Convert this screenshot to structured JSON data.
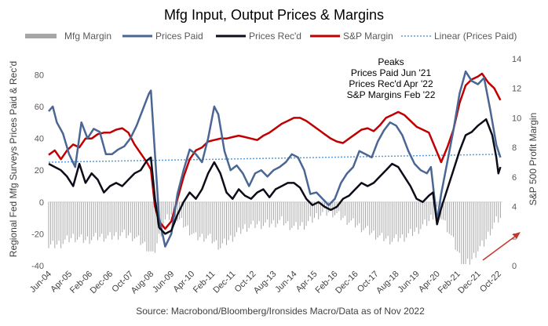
{
  "chart_data": {
    "type": "line",
    "title": "Mfg Input, Output Prices & Margins",
    "source": "Source: Macrobond/Bloomberg/Ironsides Macro/Data as of Nov 2022",
    "ylabel_left": "Regional Fed Mfg Surveys Prices Paid & Rec'd",
    "ylabel_right": "S&P 500 Profit Margin",
    "ylim_left": [
      -40,
      90
    ],
    "ylim_right": [
      0,
      14
    ],
    "yticks_left": [
      "-40",
      "-20",
      "0",
      "20",
      "40",
      "60",
      "80"
    ],
    "yticks_right": [
      "0",
      "2",
      "4",
      "6",
      "8",
      "10",
      "12",
      "14"
    ],
    "xticks": [
      "Jun-04",
      "Apr-05",
      "Feb-06",
      "Dec-06",
      "Oct-07",
      "Aug-08",
      "Jun-09",
      "Apr-10",
      "Feb-11",
      "Dec-11",
      "Oct-12",
      "Aug-13",
      "Jun-14",
      "Apr-15",
      "Feb-16",
      "Dec-16",
      "Oct-17",
      "Aug-18",
      "Jun-19",
      "Apr-20",
      "Feb-21",
      "Dec-21",
      "Oct-22"
    ],
    "x_start": "Jun-04",
    "x_end": "Dec-22",
    "legend": [
      "Mfg Margin",
      "Prices Paid",
      "Prices Rec'd",
      "S&P Margin",
      "Linear (Prices Paid)"
    ],
    "legend_position": "top",
    "annotation": [
      "Peaks",
      "Prices Paid Jun '21",
      "Prices Rec'd Apr '22",
      "S&P Margins Feb '22"
    ],
    "grid": false,
    "colors": {
      "mfg_margin": "#a6a6a6",
      "prices_paid": "#4a6694",
      "prices_recd": "#0d0d1a",
      "sp_margin": "#c00000",
      "trend": "#5b9bd5",
      "arrow": "#c0392b"
    },
    "series": [
      {
        "name": "Prices Paid",
        "axis": "left",
        "points": [
          [
            "2004-06",
            57
          ],
          [
            "2004-08",
            60
          ],
          [
            "2004-10",
            50
          ],
          [
            "2005-01",
            43
          ],
          [
            "2005-04",
            30
          ],
          [
            "2005-07",
            22
          ],
          [
            "2005-10",
            50
          ],
          [
            "2006-01",
            40
          ],
          [
            "2006-04",
            46
          ],
          [
            "2006-07",
            44
          ],
          [
            "2006-10",
            30
          ],
          [
            "2007-01",
            30
          ],
          [
            "2007-04",
            33
          ],
          [
            "2007-07",
            35
          ],
          [
            "2007-10",
            40
          ],
          [
            "2008-01",
            48
          ],
          [
            "2008-04",
            58
          ],
          [
            "2008-07",
            68
          ],
          [
            "2008-08",
            70
          ],
          [
            "2008-10",
            30
          ],
          [
            "2008-12",
            -10
          ],
          [
            "2009-03",
            -28
          ],
          [
            "2009-06",
            -20
          ],
          [
            "2009-09",
            5
          ],
          [
            "2009-12",
            20
          ],
          [
            "2010-03",
            33
          ],
          [
            "2010-06",
            30
          ],
          [
            "2010-09",
            25
          ],
          [
            "2010-12",
            40
          ],
          [
            "2011-03",
            60
          ],
          [
            "2011-05",
            55
          ],
          [
            "2011-08",
            32
          ],
          [
            "2011-11",
            20
          ],
          [
            "2012-02",
            23
          ],
          [
            "2012-05",
            18
          ],
          [
            "2012-08",
            10
          ],
          [
            "2012-11",
            18
          ],
          [
            "2013-02",
            20
          ],
          [
            "2013-05",
            16
          ],
          [
            "2013-08",
            20
          ],
          [
            "2013-11",
            22
          ],
          [
            "2014-02",
            25
          ],
          [
            "2014-05",
            30
          ],
          [
            "2014-08",
            28
          ],
          [
            "2014-11",
            20
          ],
          [
            "2015-02",
            5
          ],
          [
            "2015-05",
            6
          ],
          [
            "2015-08",
            2
          ],
          [
            "2015-11",
            -2
          ],
          [
            "2016-02",
            2
          ],
          [
            "2016-05",
            12
          ],
          [
            "2016-08",
            18
          ],
          [
            "2016-11",
            22
          ],
          [
            "2017-02",
            32
          ],
          [
            "2017-05",
            30
          ],
          [
            "2017-08",
            28
          ],
          [
            "2017-11",
            38
          ],
          [
            "2018-02",
            45
          ],
          [
            "2018-05",
            50
          ],
          [
            "2018-08",
            48
          ],
          [
            "2018-11",
            42
          ],
          [
            "2019-02",
            32
          ],
          [
            "2019-05",
            24
          ],
          [
            "2019-08",
            20
          ],
          [
            "2019-11",
            18
          ],
          [
            "2020-01",
            22
          ],
          [
            "2020-04",
            -12
          ],
          [
            "2020-06",
            5
          ],
          [
            "2020-09",
            25
          ],
          [
            "2020-12",
            45
          ],
          [
            "2021-03",
            68
          ],
          [
            "2021-06",
            82
          ],
          [
            "2021-09",
            76
          ],
          [
            "2021-12",
            74
          ],
          [
            "2022-03",
            78
          ],
          [
            "2022-06",
            58
          ],
          [
            "2022-09",
            36
          ],
          [
            "2022-11",
            28
          ]
        ]
      },
      {
        "name": "Prices Rec'd",
        "axis": "left",
        "points": [
          [
            "2004-06",
            24
          ],
          [
            "2004-09",
            22
          ],
          [
            "2004-12",
            20
          ],
          [
            "2005-03",
            16
          ],
          [
            "2005-06",
            10
          ],
          [
            "2005-09",
            24
          ],
          [
            "2005-12",
            12
          ],
          [
            "2006-03",
            18
          ],
          [
            "2006-06",
            14
          ],
          [
            "2006-09",
            6
          ],
          [
            "2006-12",
            10
          ],
          [
            "2007-03",
            12
          ],
          [
            "2007-06",
            10
          ],
          [
            "2007-09",
            14
          ],
          [
            "2007-12",
            18
          ],
          [
            "2008-03",
            20
          ],
          [
            "2008-06",
            26
          ],
          [
            "2008-08",
            28
          ],
          [
            "2008-10",
            2
          ],
          [
            "2008-12",
            -16
          ],
          [
            "2009-03",
            -20
          ],
          [
            "2009-06",
            -18
          ],
          [
            "2009-09",
            -8
          ],
          [
            "2009-12",
            0
          ],
          [
            "2010-03",
            6
          ],
          [
            "2010-06",
            2
          ],
          [
            "2010-09",
            8
          ],
          [
            "2010-12",
            18
          ],
          [
            "2011-03",
            25
          ],
          [
            "2011-06",
            18
          ],
          [
            "2011-09",
            6
          ],
          [
            "2011-12",
            2
          ],
          [
            "2012-03",
            8
          ],
          [
            "2012-06",
            4
          ],
          [
            "2012-09",
            2
          ],
          [
            "2012-12",
            6
          ],
          [
            "2013-03",
            8
          ],
          [
            "2013-06",
            3
          ],
          [
            "2013-09",
            8
          ],
          [
            "2013-12",
            10
          ],
          [
            "2014-03",
            12
          ],
          [
            "2014-06",
            12
          ],
          [
            "2014-09",
            9
          ],
          [
            "2014-12",
            2
          ],
          [
            "2015-03",
            -2
          ],
          [
            "2015-06",
            0
          ],
          [
            "2015-09",
            -3
          ],
          [
            "2015-12",
            -5
          ],
          [
            "2016-03",
            -3
          ],
          [
            "2016-06",
            2
          ],
          [
            "2016-09",
            4
          ],
          [
            "2016-12",
            8
          ],
          [
            "2017-03",
            12
          ],
          [
            "2017-06",
            10
          ],
          [
            "2017-09",
            12
          ],
          [
            "2017-12",
            16
          ],
          [
            "2018-03",
            20
          ],
          [
            "2018-06",
            24
          ],
          [
            "2018-09",
            22
          ],
          [
            "2018-12",
            16
          ],
          [
            "2019-03",
            10
          ],
          [
            "2019-06",
            2
          ],
          [
            "2019-09",
            0
          ],
          [
            "2019-12",
            4
          ],
          [
            "2020-02",
            6
          ],
          [
            "2020-04",
            -14
          ],
          [
            "2020-06",
            -4
          ],
          [
            "2020-09",
            8
          ],
          [
            "2020-12",
            20
          ],
          [
            "2021-03",
            32
          ],
          [
            "2021-06",
            42
          ],
          [
            "2021-09",
            44
          ],
          [
            "2021-12",
            48
          ],
          [
            "2022-04",
            52
          ],
          [
            "2022-07",
            42
          ],
          [
            "2022-09",
            28
          ],
          [
            "2022-10",
            18
          ],
          [
            "2022-11",
            22
          ]
        ]
      },
      {
        "name": "S&P Margin",
        "axis": "right",
        "points": [
          [
            "2004-06",
            7.5
          ],
          [
            "2004-09",
            7.8
          ],
          [
            "2004-12",
            7.2
          ],
          [
            "2005-03",
            7.8
          ],
          [
            "2005-06",
            8.2
          ],
          [
            "2005-09",
            8.0
          ],
          [
            "2005-12",
            8.6
          ],
          [
            "2006-03",
            8.6
          ],
          [
            "2006-06",
            8.9
          ],
          [
            "2006-09",
            9.0
          ],
          [
            "2006-12",
            9.0
          ],
          [
            "2007-03",
            9.2
          ],
          [
            "2007-06",
            9.3
          ],
          [
            "2007-09",
            9.0
          ],
          [
            "2007-12",
            8.2
          ],
          [
            "2008-03",
            7.6
          ],
          [
            "2008-06",
            7.0
          ],
          [
            "2008-08",
            6.5
          ],
          [
            "2008-10",
            4.0
          ],
          [
            "2008-12",
            3.0
          ],
          [
            "2009-03",
            2.5
          ],
          [
            "2009-06",
            3.0
          ],
          [
            "2009-09",
            4.5
          ],
          [
            "2009-12",
            6.0
          ],
          [
            "2010-03",
            7.2
          ],
          [
            "2010-06",
            7.8
          ],
          [
            "2010-09",
            8.0
          ],
          [
            "2010-12",
            8.4
          ],
          [
            "2011-03",
            8.5
          ],
          [
            "2011-06",
            8.6
          ],
          [
            "2011-09",
            8.6
          ],
          [
            "2011-12",
            8.7
          ],
          [
            "2012-03",
            8.8
          ],
          [
            "2012-06",
            8.7
          ],
          [
            "2012-09",
            8.6
          ],
          [
            "2012-12",
            8.5
          ],
          [
            "2013-03",
            8.8
          ],
          [
            "2013-06",
            9.0
          ],
          [
            "2013-09",
            9.3
          ],
          [
            "2013-12",
            9.6
          ],
          [
            "2014-03",
            9.8
          ],
          [
            "2014-06",
            10.0
          ],
          [
            "2014-09",
            10.0
          ],
          [
            "2014-12",
            9.8
          ],
          [
            "2015-03",
            9.5
          ],
          [
            "2015-06",
            9.2
          ],
          [
            "2015-09",
            8.9
          ],
          [
            "2015-12",
            8.6
          ],
          [
            "2016-03",
            8.4
          ],
          [
            "2016-06",
            8.3
          ],
          [
            "2016-09",
            8.6
          ],
          [
            "2016-12",
            8.9
          ],
          [
            "2017-03",
            9.2
          ],
          [
            "2017-06",
            9.3
          ],
          [
            "2017-09",
            9.1
          ],
          [
            "2017-12",
            9.5
          ],
          [
            "2018-03",
            10.0
          ],
          [
            "2018-06",
            10.2
          ],
          [
            "2018-09",
            10.4
          ],
          [
            "2018-12",
            10.2
          ],
          [
            "2019-03",
            9.8
          ],
          [
            "2019-06",
            9.4
          ],
          [
            "2019-09",
            9.2
          ],
          [
            "2019-12",
            9.0
          ],
          [
            "2020-03",
            8.0
          ],
          [
            "2020-06",
            7.0
          ],
          [
            "2020-09",
            8.0
          ],
          [
            "2020-12",
            9.2
          ],
          [
            "2021-03",
            11.0
          ],
          [
            "2021-06",
            12.2
          ],
          [
            "2021-09",
            12.6
          ],
          [
            "2021-12",
            12.8
          ],
          [
            "2022-02",
            13.0
          ],
          [
            "2022-05",
            12.4
          ],
          [
            "2022-08",
            12.0
          ],
          [
            "2022-11",
            11.2
          ]
        ]
      },
      {
        "name": "Linear (Prices Paid)",
        "axis": "left",
        "points": [
          [
            "2004-06",
            25
          ],
          [
            "2022-11",
            30
          ]
        ]
      },
      {
        "name": "Mfg Margin",
        "axis": "left",
        "type": "bar",
        "points": [
          [
            "2004-06",
            -28
          ],
          [
            "2004-12",
            -26
          ],
          [
            "2005-06",
            -22
          ],
          [
            "2005-12",
            -24
          ],
          [
            "2006-06",
            -22
          ],
          [
            "2006-12",
            -22
          ],
          [
            "2007-06",
            -20
          ],
          [
            "2007-12",
            -22
          ],
          [
            "2008-06",
            -28
          ],
          [
            "2008-09",
            -34
          ],
          [
            "2008-12",
            -22
          ],
          [
            "2009-03",
            -12
          ],
          [
            "2009-06",
            -8
          ],
          [
            "2009-12",
            -14
          ],
          [
            "2010-06",
            -22
          ],
          [
            "2010-12",
            -22
          ],
          [
            "2011-06",
            -28
          ],
          [
            "2011-12",
            -22
          ],
          [
            "2012-06",
            -16
          ],
          [
            "2012-12",
            -14
          ],
          [
            "2013-06",
            -14
          ],
          [
            "2013-12",
            -12
          ],
          [
            "2014-06",
            -16
          ],
          [
            "2014-12",
            -14
          ],
          [
            "2015-06",
            -8
          ],
          [
            "2015-12",
            -6
          ],
          [
            "2016-06",
            -10
          ],
          [
            "2016-12",
            -14
          ],
          [
            "2017-06",
            -18
          ],
          [
            "2017-12",
            -22
          ],
          [
            "2018-06",
            -24
          ],
          [
            "2018-12",
            -22
          ],
          [
            "2019-06",
            -18
          ],
          [
            "2019-12",
            -12
          ],
          [
            "2020-04",
            -4
          ],
          [
            "2020-09",
            -16
          ],
          [
            "2021-03",
            -34
          ],
          [
            "2021-06",
            -40
          ],
          [
            "2021-09",
            -36
          ],
          [
            "2021-12",
            -30
          ],
          [
            "2022-03",
            -26
          ],
          [
            "2022-06",
            -18
          ],
          [
            "2022-09",
            -12
          ],
          [
            "2022-11",
            -10
          ]
        ]
      }
    ]
  }
}
